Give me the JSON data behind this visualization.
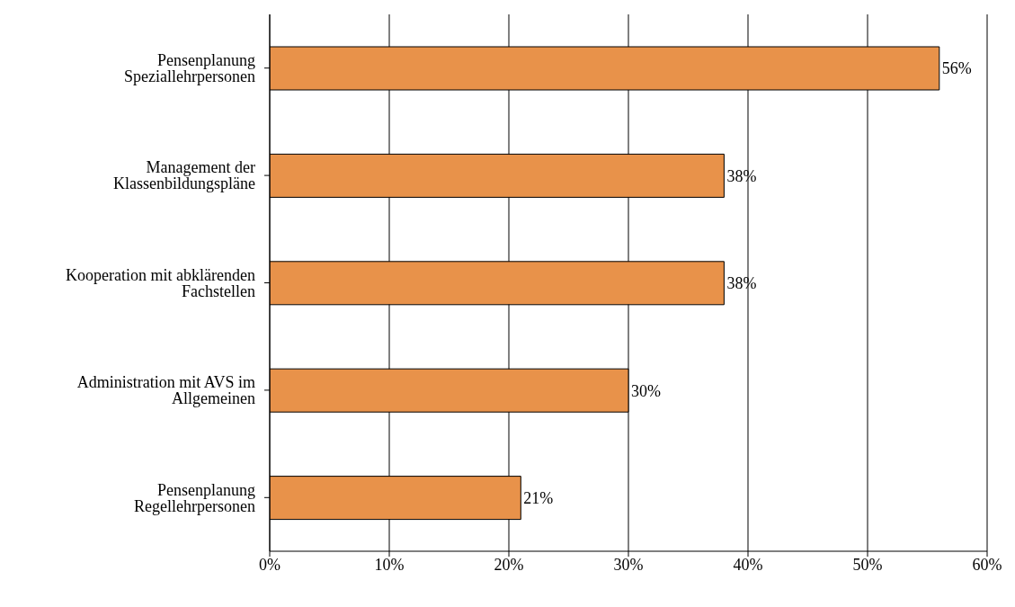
{
  "chart_data": {
    "type": "bar",
    "orientation": "horizontal",
    "categories": [
      "Pensenplanung Speziallehrpersonen",
      "Management der Klassenbildungspläne",
      "Kooperation mit abklärenden Fachstellen",
      "Administration mit AVS im Allgemeinen",
      "Pensenplanung Regellehrpersonen"
    ],
    "values": [
      56,
      38,
      38,
      30,
      21
    ],
    "value_labels": [
      "56%",
      "38%",
      "38%",
      "30%",
      "21%"
    ],
    "color": "#e8924a",
    "xlim": [
      0,
      60
    ],
    "xticks": [
      {
        "value": 0,
        "label": "0%"
      },
      {
        "value": 10,
        "label": "10%"
      },
      {
        "value": 20,
        "label": "20%"
      },
      {
        "value": 30,
        "label": "30%"
      },
      {
        "value": 40,
        "label": "40%"
      },
      {
        "value": 50,
        "label": "50%"
      },
      {
        "value": 60,
        "label": "60%"
      }
    ],
    "grid": "x",
    "legend": false
  }
}
